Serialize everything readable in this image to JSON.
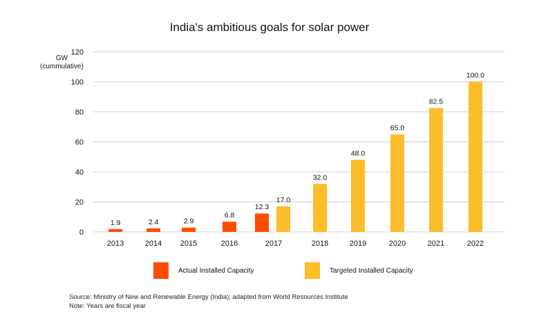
{
  "chart_data": {
    "type": "bar",
    "title": "India's ambitious goals for solar power",
    "ylabel": "GW",
    "ylabel_sub": "(cummulative)",
    "ylim": [
      0,
      120
    ],
    "yticks": [
      0,
      20,
      40,
      60,
      80,
      100,
      120
    ],
    "grid": true,
    "categories": [
      "2013",
      "2014",
      "2015",
      "2016",
      "2017",
      "2018",
      "2019",
      "2020",
      "2021",
      "2022"
    ],
    "series": [
      {
        "name": "Actual Installed Capacity",
        "color": "#ff4d00",
        "values": [
          1.9,
          2.4,
          2.9,
          6.8,
          12.3,
          null,
          null,
          null,
          null,
          null
        ],
        "labels": [
          "1.9",
          "2.4",
          "2.9",
          "6.8",
          "12.3",
          null,
          null,
          null,
          null,
          null
        ]
      },
      {
        "name": "Targeted Installed Capacity",
        "color": "#fbbd29",
        "values": [
          null,
          null,
          null,
          null,
          17.0,
          32.0,
          48.0,
          65.0,
          82.5,
          100.0
        ],
        "labels": [
          null,
          null,
          null,
          null,
          "17.0",
          "32.0",
          "48.0",
          "65.0",
          "82.5",
          "100.0"
        ]
      }
    ],
    "legend_position": "bottom"
  },
  "footnotes": {
    "source": "Source: Ministry of New and Renewable Energy (India); adapted from World Resources Institute",
    "note": "Note: Years are fiscal year"
  }
}
